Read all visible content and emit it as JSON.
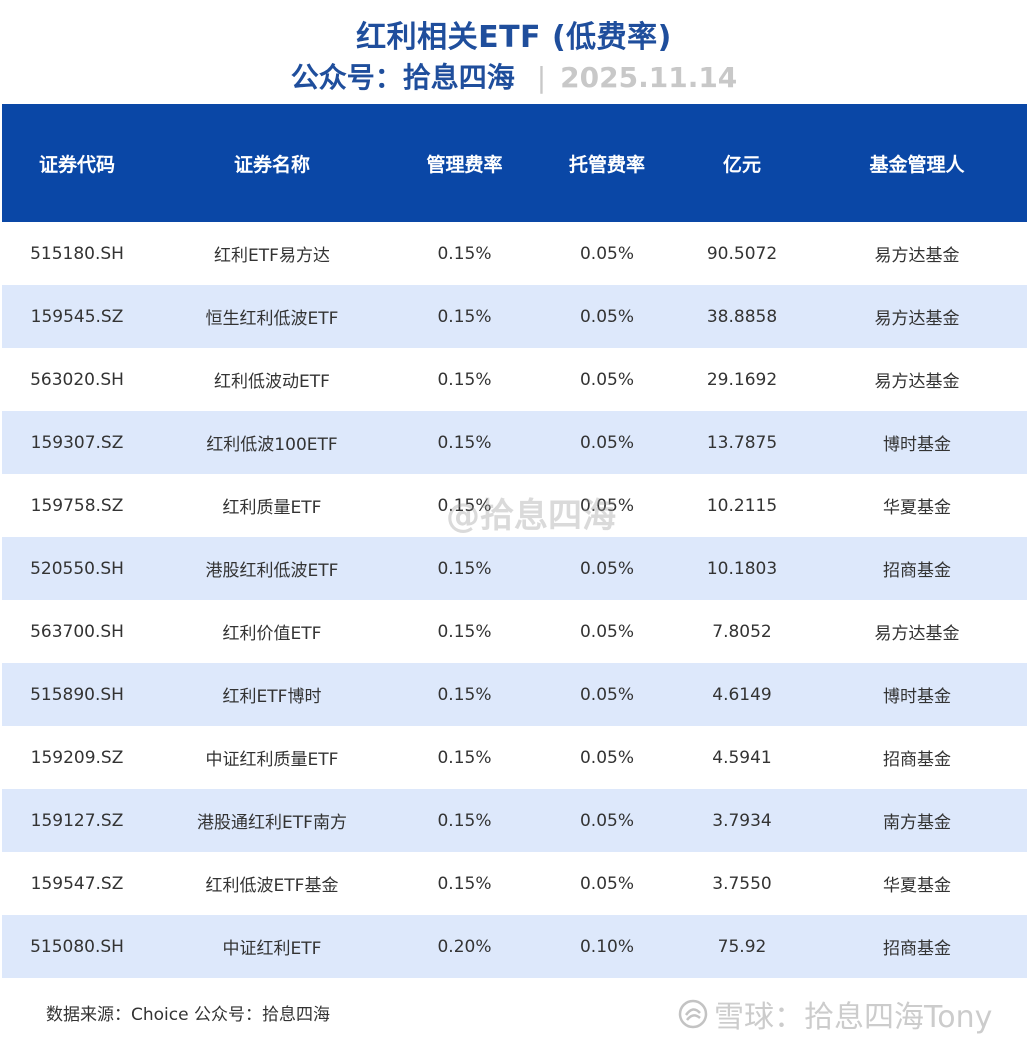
{
  "header": {
    "title": "红利相关ETF (低费率)",
    "account": "公众号：拾息四海",
    "separator": "|",
    "date": "2025.11.14"
  },
  "table": {
    "columns": [
      "证券代码",
      "证券名称",
      "管理费率",
      "托管费率",
      "亿元",
      "基金管理人"
    ],
    "rows": [
      [
        "515180.SH",
        "红利ETF易方达",
        "0.15%",
        "0.05%",
        "90.5072",
        "易方达基金"
      ],
      [
        "159545.SZ",
        "恒生红利低波ETF",
        "0.15%",
        "0.05%",
        "38.8858",
        "易方达基金"
      ],
      [
        "563020.SH",
        "红利低波动ETF",
        "0.15%",
        "0.05%",
        "29.1692",
        "易方达基金"
      ],
      [
        "159307.SZ",
        "红利低波100ETF",
        "0.15%",
        "0.05%",
        "13.7875",
        "博时基金"
      ],
      [
        "159758.SZ",
        "红利质量ETF",
        "0.15%",
        "0.05%",
        "10.2115",
        "华夏基金"
      ],
      [
        "520550.SH",
        "港股红利低波ETF",
        "0.15%",
        "0.05%",
        "10.1803",
        "招商基金"
      ],
      [
        "563700.SH",
        "红利价值ETF",
        "0.15%",
        "0.05%",
        "7.8052",
        "易方达基金"
      ],
      [
        "515890.SH",
        "红利ETF博时",
        "0.15%",
        "0.05%",
        "4.6149",
        "博时基金"
      ],
      [
        "159209.SZ",
        "中证红利质量ETF",
        "0.15%",
        "0.05%",
        "4.5941",
        "招商基金"
      ],
      [
        "159127.SZ",
        "港股通红利ETF南方",
        "0.15%",
        "0.05%",
        "3.7934",
        "南方基金"
      ],
      [
        "159547.SZ",
        "红利低波ETF基金",
        "0.15%",
        "0.05%",
        "3.7550",
        "华夏基金"
      ],
      [
        "515080.SH",
        "中证红利ETF",
        "0.20%",
        "0.10%",
        "75.92",
        "招商基金"
      ]
    ]
  },
  "footer": {
    "source": "数据来源：Choice  公众号：拾息四海"
  },
  "watermarks": {
    "center": "@拾息四海",
    "bottom": "雪球：拾息四海Tony",
    "bottom_icon": "snowball-logo-icon"
  },
  "colors": {
    "title": "#1f4e9c",
    "header_bg": "#0a47a6",
    "stripe": "#dde8fb"
  }
}
